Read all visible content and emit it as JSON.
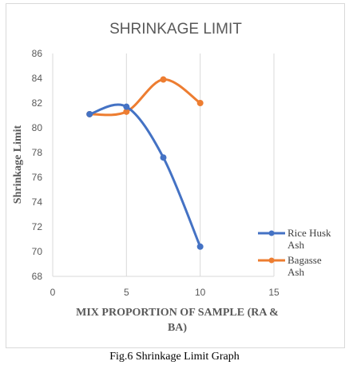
{
  "chart_data": {
    "type": "scatter",
    "title": "SHRINKAGE LIMIT",
    "xlabel": "MIX PROPORTION OF SAMPLE (RA & BA)",
    "ylabel": "Shrinkage Limit",
    "xlim": [
      0,
      15
    ],
    "ylim": [
      68,
      86
    ],
    "xticks": [
      0,
      5,
      10,
      15
    ],
    "yticks": [
      68,
      70,
      72,
      74,
      76,
      78,
      80,
      82,
      84,
      86
    ],
    "grid": {
      "vertical": true,
      "horizontal": false
    },
    "smooth_lines": true,
    "legend_position": "right",
    "series": [
      {
        "name": "Rice Husk Ash",
        "color": "#4472c4",
        "x": [
          2.5,
          5,
          7.5,
          10
        ],
        "y": [
          81.1,
          81.7,
          77.6,
          70.4
        ]
      },
      {
        "name": "Bagasse Ash",
        "color": "#ed7d31",
        "x": [
          2.5,
          5,
          7.5,
          10
        ],
        "y": [
          81.1,
          81.3,
          83.9,
          82.0
        ]
      }
    ]
  },
  "caption": "Fig.6 Shrinkage Limit Graph"
}
